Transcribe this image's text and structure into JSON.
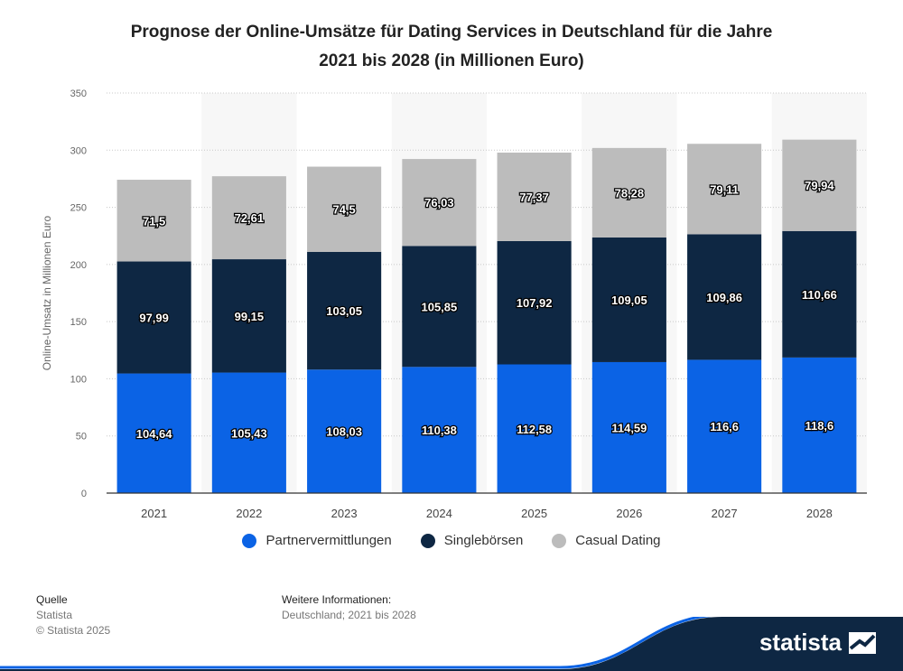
{
  "title_line1": "Prognose der Online-Umsätze für Dating Services in Deutschland für die Jahre",
  "title_line2": "2021 bis 2028 (in Millionen Euro)",
  "chart_data": {
    "type": "bar",
    "stacked": true,
    "categories": [
      "2021",
      "2022",
      "2023",
      "2024",
      "2025",
      "2026",
      "2027",
      "2028"
    ],
    "series": [
      {
        "name": "Partnervermittlungen",
        "color": "#0b63e5",
        "values": [
          104.64,
          105.43,
          108.03,
          110.38,
          112.58,
          114.59,
          116.6,
          118.6
        ],
        "labels": [
          "104,64",
          "105,43",
          "108,03",
          "110,38",
          "112,58",
          "114,59",
          "116,6",
          "118,6"
        ]
      },
      {
        "name": "Singlebörsen",
        "color": "#0e2743",
        "values": [
          97.99,
          99.15,
          103.05,
          105.85,
          107.92,
          109.05,
          109.86,
          110.66
        ],
        "labels": [
          "97,99",
          "99,15",
          "103,05",
          "105,85",
          "107,92",
          "109,05",
          "109,86",
          "110,66"
        ]
      },
      {
        "name": "Casual Dating",
        "color": "#bcbcbc",
        "values": [
          71.5,
          72.61,
          74.5,
          76.03,
          77.37,
          78.28,
          79.11,
          79.94
        ],
        "labels": [
          "71,5",
          "72,61",
          "74,5",
          "76,03",
          "77,37",
          "78,28",
          "79,11",
          "79,94"
        ]
      }
    ],
    "ylabel": "Online-Umsatz in Millionen Euro",
    "ylim": [
      0,
      350
    ],
    "yticks": [
      0,
      50,
      100,
      150,
      200,
      250,
      300,
      350
    ],
    "grid": true,
    "legend_position": "bottom"
  },
  "footer": {
    "source_heading": "Quelle",
    "source_name": "Statista",
    "copyright": "© Statista 2025",
    "info_heading": "Weitere Informationen:",
    "info_text": "Deutschland; 2021 bis 2028"
  },
  "brand": {
    "logo_text": "statista",
    "bar_color": "#0e2743"
  }
}
